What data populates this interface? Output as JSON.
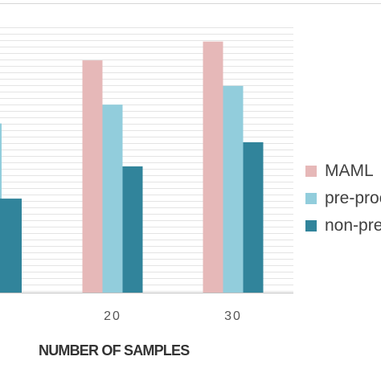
{
  "chart_data": {
    "type": "bar",
    "categories": [
      "20",
      "30"
    ],
    "series": [
      {
        "name": "MAML",
        "color": "#e6b8b8",
        "values": [
          0.865,
          0.935
        ]
      },
      {
        "name": "pre-proc",
        "color": "#92cddc",
        "values": [
          0.7,
          0.77
        ]
      },
      {
        "name": "non-pre",
        "color": "#31849b",
        "values": [
          0.47,
          0.56
        ]
      }
    ],
    "partial_bars_at_left_edge": [
      {
        "series": "pre-proc",
        "value": 0.63
      },
      {
        "series": "non-pre",
        "value": 0.35
      }
    ],
    "xlabel": "NUMBER OF SAMPLES",
    "ylabel": "",
    "ylim": [
      0,
      1
    ],
    "grid": true,
    "legend_position": "right"
  }
}
